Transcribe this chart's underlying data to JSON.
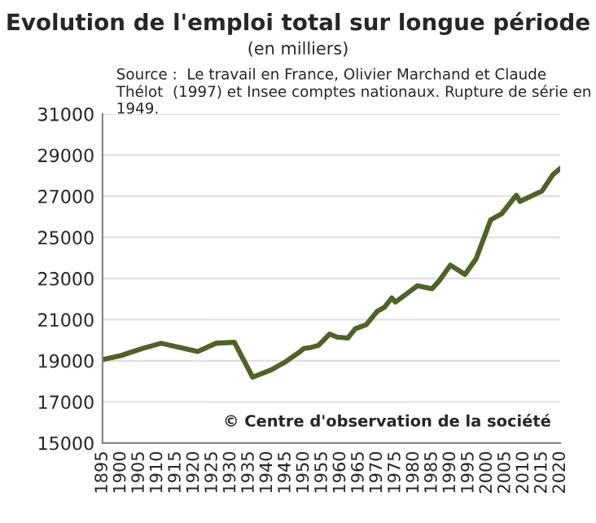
{
  "chart_data": {
    "type": "line",
    "title": "Evolution de l'emploi total sur longue période",
    "subtitle": "(en milliers)",
    "annotations": [
      "Source :  Le travail en France, Olivier Marchand et Claude Thélot  (1997) et Insee comptes nationaux. Rupture de série en 1949.",
      "© Centre d'observation de la société"
    ],
    "series": [
      {
        "color": "#4f6228",
        "x": [
          1895,
          1900,
          1906,
          1911,
          1921,
          1926,
          1931,
          1936,
          1941,
          1945,
          1949,
          1950,
          1952,
          1954,
          1957,
          1959,
          1962,
          1964,
          1967,
          1970,
          1972,
          1974,
          1975,
          1981,
          1985,
          1987,
          1990,
          1994,
          1997,
          2001,
          2004,
          2008,
          2009,
          2015,
          2018,
          2020
        ],
        "values": [
          19050,
          19250,
          19600,
          19850,
          19450,
          19850,
          19900,
          18200,
          18550,
          18950,
          19450,
          19600,
          19650,
          19750,
          20300,
          20150,
          20100,
          20550,
          20750,
          21400,
          21600,
          22050,
          21850,
          22650,
          22500,
          22900,
          23650,
          23200,
          23950,
          25850,
          26150,
          27050,
          26750,
          27250,
          28050,
          28350
        ]
      }
    ],
    "xlim": [
      1895,
      2020
    ],
    "xticks": [
      1895,
      1900,
      1905,
      1910,
      1915,
      1920,
      1925,
      1930,
      1935,
      1940,
      1945,
      1950,
      1955,
      1960,
      1965,
      1970,
      1975,
      1980,
      1985,
      1990,
      1995,
      2000,
      2005,
      2010,
      2015,
      2020
    ],
    "ylim": [
      15000,
      31000
    ],
    "yticks": [
      15000,
      17000,
      19000,
      21000,
      23000,
      25000,
      27000,
      29000,
      31000
    ],
    "grid": "y",
    "legend": false,
    "marker": "none",
    "line_style": "solid"
  }
}
